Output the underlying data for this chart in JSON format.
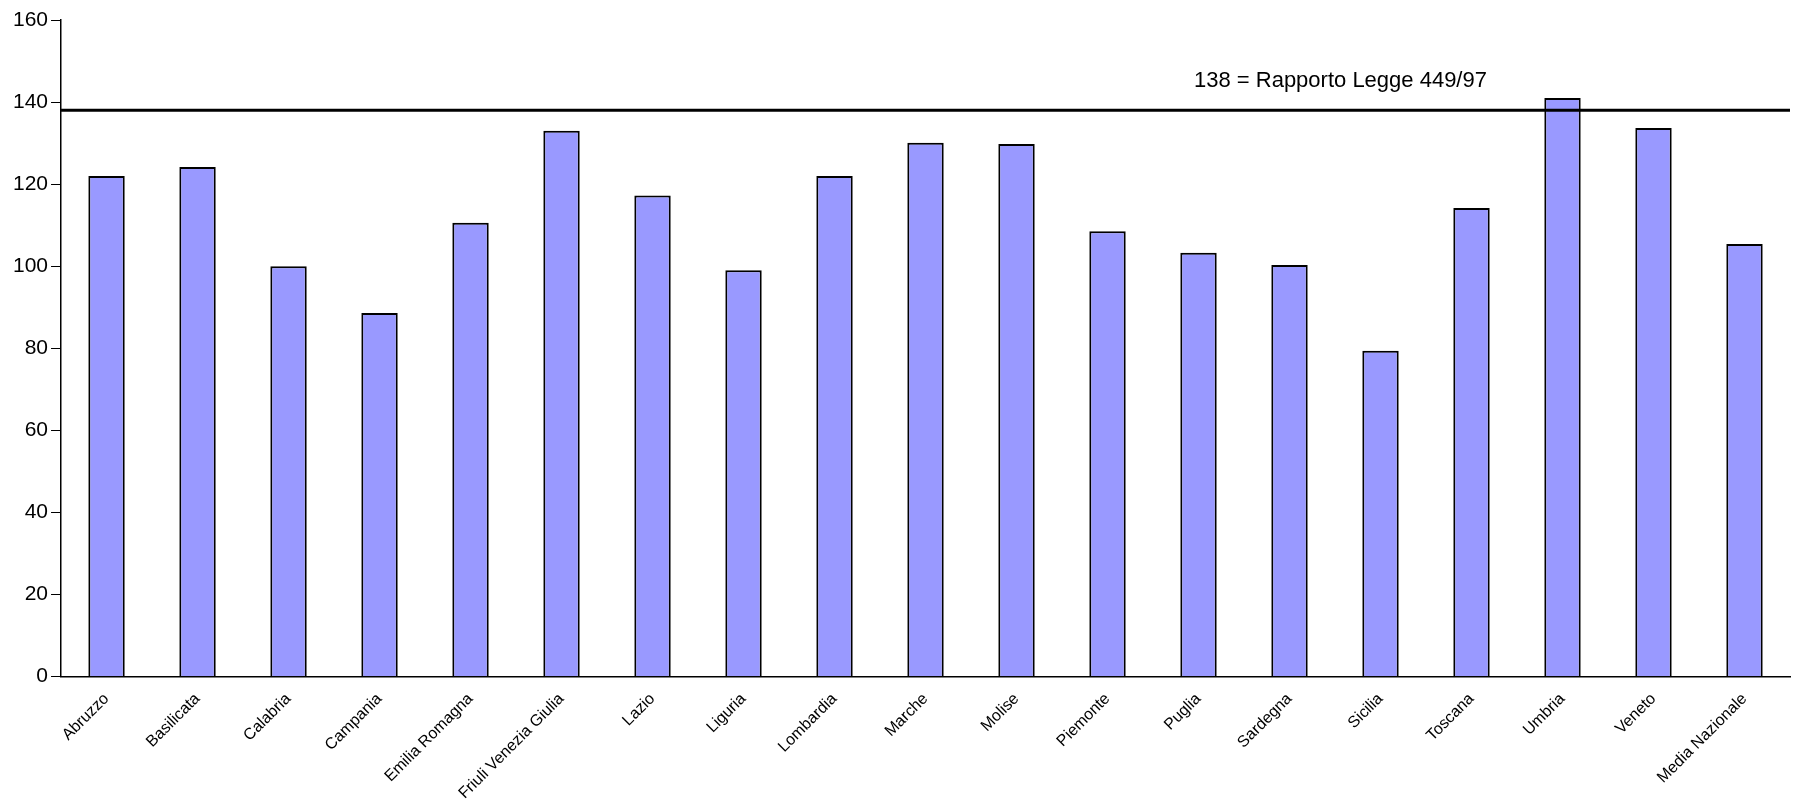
{
  "chart_data": {
    "type": "bar",
    "categories": [
      "Abruzzo",
      "Basilicata",
      "Calabria",
      "Campania",
      "Emilia Romagna",
      "Friuli Venezia Giulia",
      "Lazio",
      "Liguria",
      "Lombardia",
      "Marche",
      "Molise",
      "Piemonte",
      "Puglia",
      "Sardegna",
      "Sicilia",
      "Toscana",
      "Umbria",
      "Veneto",
      "Media Nazionale"
    ],
    "values": [
      122,
      124.2,
      100,
      88.6,
      110.6,
      133,
      117.2,
      99,
      122,
      130.1,
      129.8,
      108.5,
      103.3,
      100.3,
      79.4,
      114.2,
      141,
      133.7,
      105.4
    ],
    "color": "#9999ff",
    "ylim": [
      0,
      160
    ],
    "yticks": [
      0,
      20,
      40,
      60,
      80,
      100,
      120,
      140,
      160
    ],
    "grid": false,
    "legend": false,
    "ref_lines": [
      {
        "axis": "y",
        "value": 138,
        "label": "138 = Rapporto Legge 449/97",
        "color": "#000000"
      }
    ]
  }
}
